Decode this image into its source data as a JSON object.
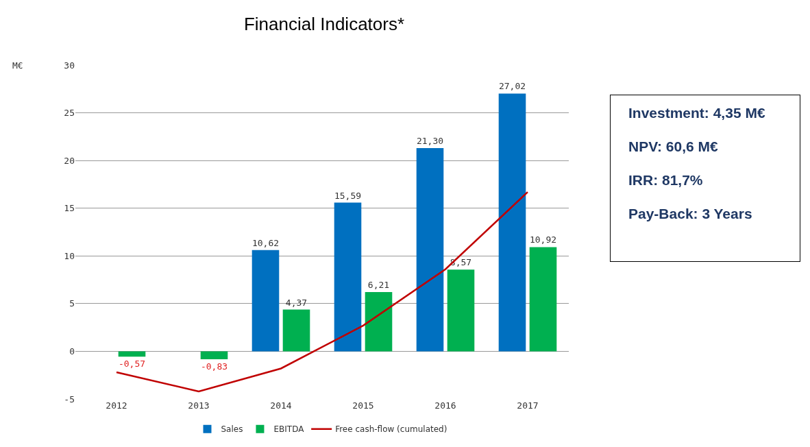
{
  "chart_data": {
    "type": "bar",
    "title": "Financial Indicators*",
    "ylabel": "M€",
    "categories": [
      "2012",
      "2013",
      "2014",
      "2015",
      "2016",
      "2017"
    ],
    "series": [
      {
        "name": "Sales",
        "color": "#0070c0",
        "values": [
          null,
          null,
          10.62,
          15.59,
          21.3,
          27.02
        ],
        "value_labels": [
          null,
          null,
          "10,62",
          "15,59",
          "21,30",
          "27,02"
        ]
      },
      {
        "name": "EBITDA",
        "color": "#00b050",
        "values": [
          -0.57,
          -0.83,
          4.37,
          6.21,
          8.57,
          10.92
        ],
        "value_labels": [
          "-0,57",
          "-0,83",
          "4,37",
          "6,21",
          "8,57",
          "10,92"
        ]
      },
      {
        "name": "Free cash-flow (cumulated)",
        "type": "line",
        "color": "#c00000",
        "values": [
          -2.2,
          -4.2,
          -1.8,
          2.7,
          8.6,
          16.7
        ]
      }
    ],
    "ylim": [
      -5,
      30
    ],
    "yticks": [
      -5,
      0,
      5,
      10,
      15,
      20,
      25,
      30
    ],
    "grid": "y",
    "legend": "bottom",
    "annotations": [
      "Investment: 4,35 M€",
      "NPV: 60,6 M€",
      "IRR: 81,7%",
      "Pay-Back: 3 Years"
    ]
  }
}
